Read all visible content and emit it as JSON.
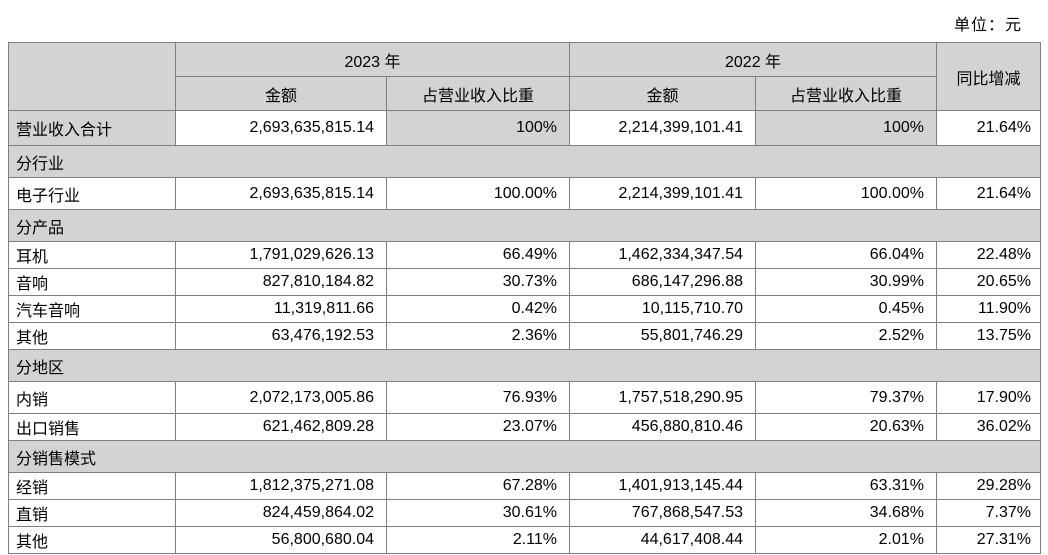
{
  "unit_label": "单位：元",
  "table": {
    "col_groups": [
      {
        "label": "2023 年"
      },
      {
        "label": "2022 年"
      }
    ],
    "sub_headers": [
      "金额",
      "占营业收入比重",
      "金额",
      "占营业收入比重"
    ],
    "yoy_header": "同比增减",
    "rows": [
      {
        "type": "total",
        "label": "营业收入合计",
        "cells": [
          "2,693,635,815.14",
          "100%",
          "2,214,399,101.41",
          "100%",
          "21.64%"
        ]
      },
      {
        "type": "section",
        "label": "分行业"
      },
      {
        "type": "data",
        "tall": true,
        "label": "电子行业",
        "cells": [
          "2,693,635,815.14",
          "100.00%",
          "2,214,399,101.41",
          "100.00%",
          "21.64%"
        ]
      },
      {
        "type": "section",
        "label": "分产品"
      },
      {
        "type": "data",
        "tall": false,
        "label": "耳机",
        "cells": [
          "1,791,029,626.13",
          "66.49%",
          "1,462,334,347.54",
          "66.04%",
          "22.48%"
        ]
      },
      {
        "type": "data",
        "tall": false,
        "label": "音响",
        "cells": [
          "827,810,184.82",
          "30.73%",
          "686,147,296.88",
          "30.99%",
          "20.65%"
        ]
      },
      {
        "type": "data",
        "tall": false,
        "label": "汽车音响",
        "cells": [
          "11,319,811.66",
          "0.42%",
          "10,115,710.70",
          "0.45%",
          "11.90%"
        ]
      },
      {
        "type": "data",
        "tall": false,
        "label": "其他",
        "cells": [
          "63,476,192.53",
          "2.36%",
          "55,801,746.29",
          "2.52%",
          "13.75%"
        ]
      },
      {
        "type": "section",
        "label": "分地区"
      },
      {
        "type": "data",
        "tall": true,
        "label": "内销",
        "cells": [
          "2,072,173,005.86",
          "76.93%",
          "1,757,518,290.95",
          "79.37%",
          "17.90%"
        ]
      },
      {
        "type": "data",
        "tall": false,
        "label": "出口销售",
        "cells": [
          "621,462,809.28",
          "23.07%",
          "456,880,810.46",
          "20.63%",
          "36.02%"
        ]
      },
      {
        "type": "section",
        "label": "分销售模式"
      },
      {
        "type": "data",
        "tall": false,
        "label": "经销",
        "cells": [
          "1,812,375,271.08",
          "67.28%",
          "1,401,913,145.44",
          "63.31%",
          "29.28%"
        ]
      },
      {
        "type": "data",
        "tall": false,
        "label": "直销",
        "cells": [
          "824,459,864.02",
          "30.61%",
          "767,868,547.53",
          "34.68%",
          "7.37%"
        ]
      },
      {
        "type": "data",
        "tall": false,
        "label": "其他",
        "cells": [
          "56,800,680.04",
          "2.11%",
          "44,617,408.44",
          "2.01%",
          "27.31%"
        ]
      }
    ]
  },
  "colors": {
    "header_fill": "#d3d3d3",
    "grid_border": "#7f7f7f",
    "text": "#000000",
    "background": "#ffffff"
  }
}
